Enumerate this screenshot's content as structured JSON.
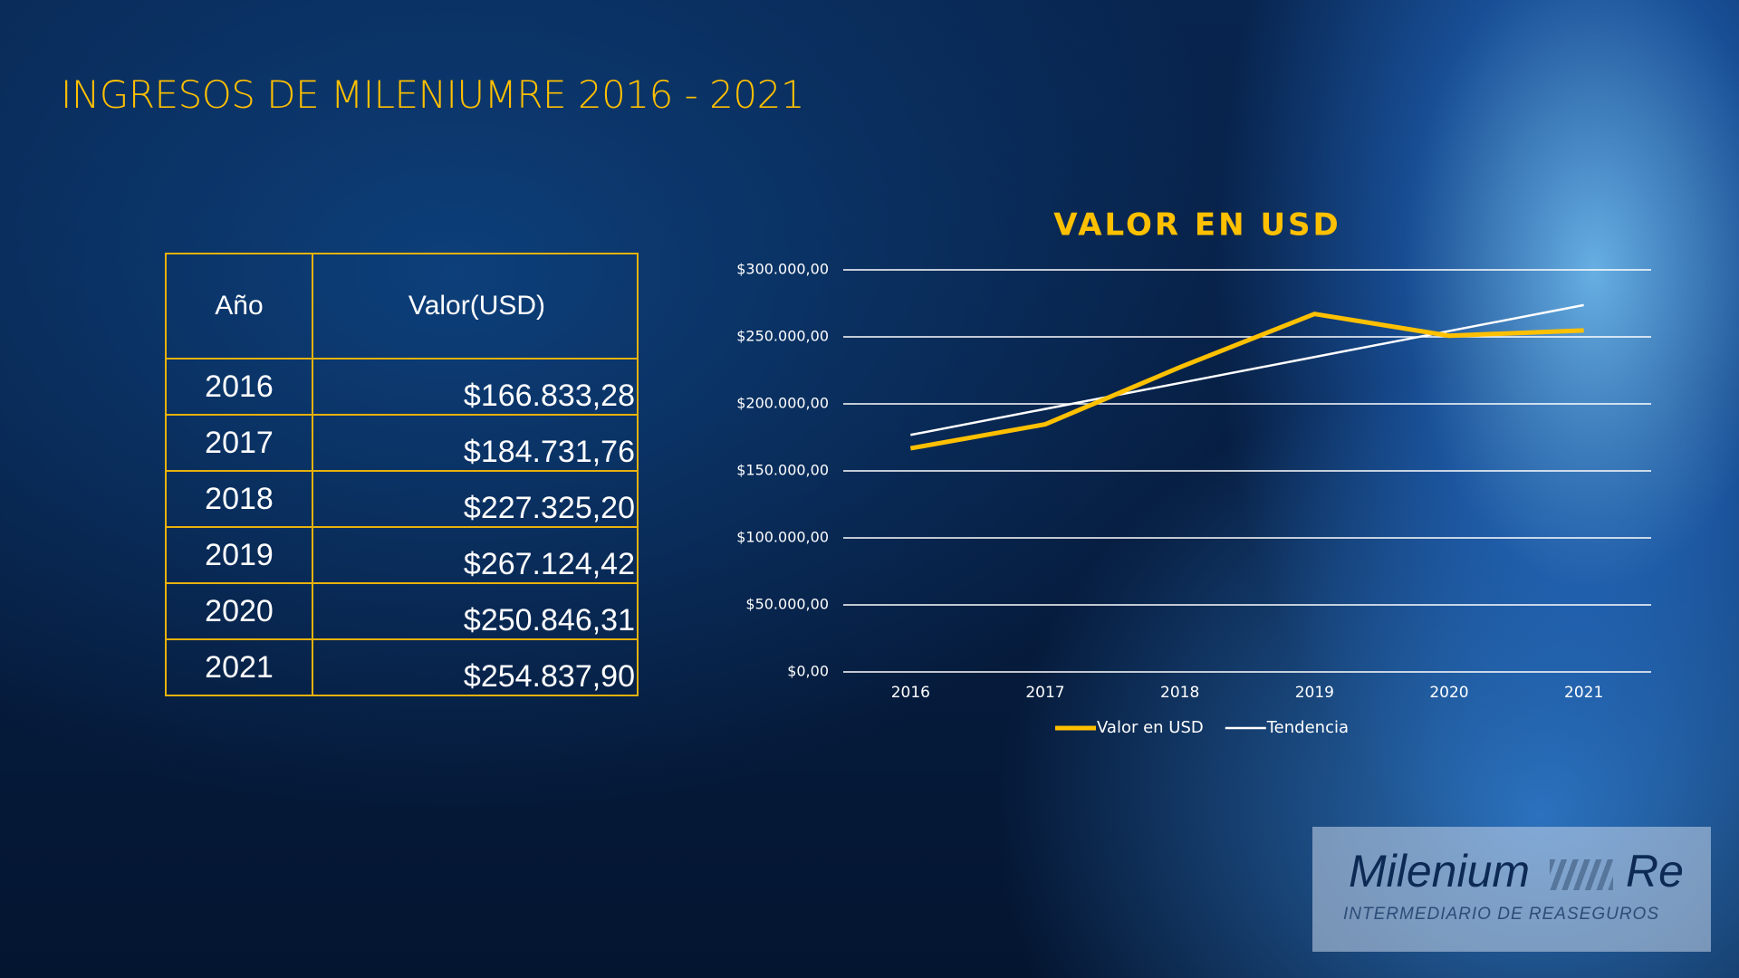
{
  "title": "INGRESOS DE MILENIUMRE 2016 - 2021",
  "table": {
    "header": [
      "Año",
      "Valor(USD)"
    ],
    "rows": [
      [
        "2016",
        "$166.833,28"
      ],
      [
        "2017",
        "$184.731,76"
      ],
      [
        "2018",
        "$227.325,20"
      ],
      [
        "2019",
        "$267.124,42"
      ],
      [
        "2020",
        "$250.846,31"
      ],
      [
        "2021",
        "$254.837,90"
      ]
    ]
  },
  "chart_data": {
    "type": "line",
    "title": "VALOR EN USD",
    "categories": [
      "2016",
      "2017",
      "2018",
      "2019",
      "2020",
      "2021"
    ],
    "series": [
      {
        "name": "Valor en USD",
        "color": "#ffc000",
        "values": [
          166833.28,
          184731.76,
          227325.2,
          267124.42,
          250846.31,
          254837.9
        ]
      },
      {
        "name": "Tendencia",
        "color": "#ffffff",
        "values": [
          176843,
          196219,
          215595,
          234971,
          254347,
          273724
        ]
      }
    ],
    "ylim": [
      0,
      300000
    ],
    "yticks": [
      {
        "value": 0,
        "label": "$0,00"
      },
      {
        "value": 50000,
        "label": "$50.000,00"
      },
      {
        "value": 100000,
        "label": "$100.000,00"
      },
      {
        "value": 150000,
        "label": "$150.000,00"
      },
      {
        "value": 200000,
        "label": "$200.000,00"
      },
      {
        "value": 250000,
        "label": "$250.000,00"
      },
      {
        "value": 300000,
        "label": "$300.000,00"
      }
    ],
    "grid": true,
    "legend": "bottom"
  },
  "logo": {
    "name": "Milenium",
    "suffix": "Re",
    "tagline": "INTERMEDIARIO DE REASEGUROS"
  }
}
